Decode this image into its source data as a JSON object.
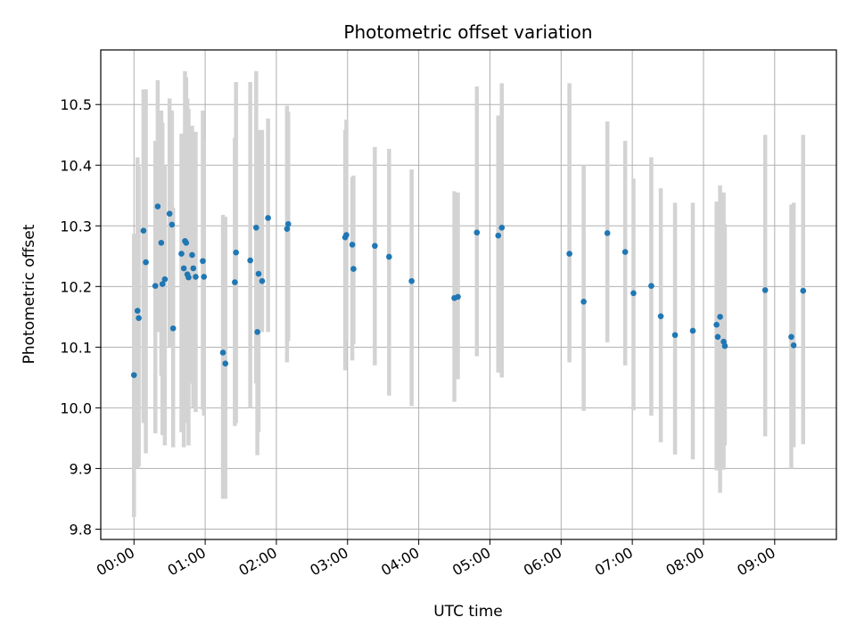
{
  "chart_data": {
    "type": "scatter",
    "title": "Photometric offset variation",
    "xlabel": "UTC time",
    "ylabel": "Photometric offset",
    "x_ticks": [
      "00:00",
      "01:00",
      "02:00",
      "03:00",
      "04:00",
      "05:00",
      "06:00",
      "07:00",
      "08:00",
      "09:00"
    ],
    "y_ticks": [
      "9.8",
      "9.9",
      "10.0",
      "10.1",
      "10.2",
      "10.3",
      "10.4",
      "10.5"
    ],
    "xlim": [
      "23:32",
      "09:52"
    ],
    "ylim": [
      9.783,
      10.59
    ],
    "grid": true,
    "colors": {
      "points": "#1f77b4",
      "errorbars": "#d3d3d3",
      "grid": "#b0b0b0"
    },
    "series": [
      {
        "x": [
          "00:00",
          "00:03",
          "00:04",
          "00:08",
          "00:10",
          "00:18",
          "00:20",
          "00:23",
          "00:24",
          "00:26",
          "00:30",
          "00:32",
          "00:33",
          "00:40",
          "00:42",
          "00:43",
          "00:44",
          "00:45",
          "00:46",
          "00:49",
          "00:50",
          "00:52",
          "00:58",
          "00:59",
          "01:15",
          "01:17",
          "01:25",
          "01:26",
          "01:38",
          "01:43",
          "01:44",
          "01:45",
          "01:48",
          "01:53",
          "02:09",
          "02:10",
          "02:58",
          "02:59",
          "03:04",
          "03:05",
          "03:23",
          "03:35",
          "03:54",
          "04:30",
          "04:33",
          "04:49",
          "05:07",
          "05:10",
          "06:07",
          "06:19",
          "06:39",
          "06:54",
          "07:01",
          "07:16",
          "07:24",
          "07:36",
          "07:51",
          "08:11",
          "08:12",
          "08:14",
          "08:17",
          "08:18",
          "08:52",
          "09:14",
          "09:16",
          "09:24"
        ],
        "y": [
          10.054,
          10.16,
          10.148,
          10.292,
          10.24,
          10.201,
          10.332,
          10.272,
          10.204,
          10.212,
          10.32,
          10.302,
          10.131,
          10.254,
          10.23,
          10.275,
          10.272,
          10.22,
          10.215,
          10.252,
          10.23,
          10.216,
          10.242,
          10.216,
          10.091,
          10.073,
          10.207,
          10.256,
          10.243,
          10.297,
          10.125,
          10.221,
          10.209,
          10.313,
          10.295,
          10.303,
          10.281,
          10.285,
          10.269,
          10.229,
          10.267,
          10.249,
          10.209,
          10.181,
          10.183,
          10.289,
          10.284,
          10.297,
          10.254,
          10.175,
          10.288,
          10.257,
          10.189,
          10.201,
          10.151,
          10.12,
          10.127,
          10.137,
          10.117,
          10.15,
          10.109,
          10.102,
          10.194,
          10.117,
          10.103,
          10.193
        ],
        "yerr_low": [
          9.82,
          9.9,
          9.903,
          9.975,
          9.925,
          9.958,
          10.125,
          10.053,
          9.955,
          9.938,
          10.1,
          10.145,
          9.935,
          9.96,
          9.935,
          9.99,
          9.998,
          9.975,
          9.938,
          10.04,
          10.0,
          9.993,
          9.997,
          9.987,
          9.85,
          9.85,
          9.97,
          9.975,
          10.0,
          10.04,
          9.922,
          9.96,
          10.125,
          10.125,
          10.075,
          10.11,
          10.062,
          10.11,
          10.078,
          10.105,
          10.07,
          10.02,
          10.003,
          10.01,
          10.047,
          10.085,
          10.058,
          10.05,
          10.075,
          9.995,
          10.108,
          10.07,
          9.996,
          9.987,
          9.943,
          9.923,
          9.915,
          9.897,
          9.93,
          9.86,
          9.898,
          9.938,
          9.953,
          9.9,
          9.935,
          9.94
        ],
        "yerr_high": [
          10.287,
          10.413,
          10.398,
          10.525,
          10.525,
          10.44,
          10.54,
          10.49,
          10.47,
          10.4,
          10.51,
          10.49,
          10.33,
          10.452,
          10.45,
          10.555,
          10.545,
          10.51,
          10.493,
          10.465,
          10.455,
          10.455,
          10.49,
          10.444,
          10.318,
          10.315,
          10.445,
          10.537,
          10.537,
          10.555,
          10.327,
          10.458,
          10.458,
          10.477,
          10.498,
          10.488,
          10.458,
          10.475,
          10.38,
          10.383,
          10.43,
          10.427,
          10.393,
          10.357,
          10.355,
          10.53,
          10.482,
          10.535,
          10.535,
          10.4,
          10.472,
          10.44,
          10.378,
          10.413,
          10.362,
          10.338,
          10.338,
          10.34,
          10.34,
          10.367,
          10.355,
          10.303,
          10.45,
          10.335,
          10.338,
          10.45
        ]
      }
    ]
  }
}
